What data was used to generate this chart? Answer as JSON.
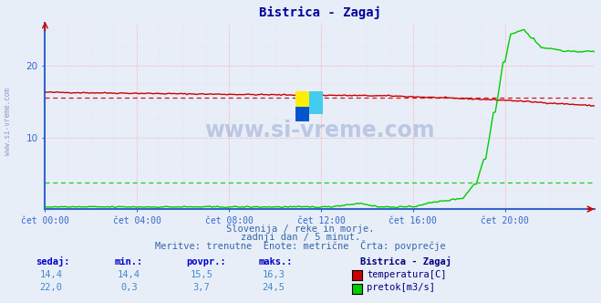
{
  "title": "Bistrica - Zagaj",
  "background_color": "#e8eef8",
  "plot_bg_color": "#e8eef8",
  "grid_color": "#ffaaaa",
  "axis_color": "#3366cc",
  "title_color": "#000099",
  "text_color": "#3366aa",
  "xlabel_ticks": [
    "čet 00:00",
    "čet 04:00",
    "čet 08:00",
    "čet 12:00",
    "čet 16:00",
    "čet 20:00"
  ],
  "xtick_positions": [
    0,
    48,
    96,
    144,
    192,
    240
  ],
  "ylim_temp": [
    0,
    26
  ],
  "ylim_flow": [
    0,
    26
  ],
  "yticks": [
    10,
    20
  ],
  "n_points": 288,
  "temp_start": 16.3,
  "temp_end": 14.4,
  "temp_avg": 15.5,
  "temp_min": 14.4,
  "temp_max": 16.3,
  "flow_avg": 3.7,
  "flow_min": 0.3,
  "flow_max": 24.5,
  "flow_current": 22.0,
  "temp_current": 14.4,
  "temp_color": "#cc0000",
  "flow_color": "#00cc00",
  "watermark_text": "www.si-vreme.com",
  "subtitle1": "Slovenija / reke in morje.",
  "subtitle2": "zadnji dan / 5 minut.",
  "subtitle3": "Meritve: trenutne  Enote: metrične  Črta: povprečje",
  "label_sedaj": "sedaj:",
  "label_min": "min.:",
  "label_povpr": "povpr.:",
  "label_maks": "maks.:",
  "legend_title": "Bistrica - Zagaj",
  "legend_temp": "temperatura[C]",
  "legend_flow": "pretok[m3/s]",
  "table_temp": [
    14.4,
    14.4,
    15.5,
    16.3
  ],
  "table_flow": [
    22.0,
    0.3,
    3.7,
    24.5
  ]
}
